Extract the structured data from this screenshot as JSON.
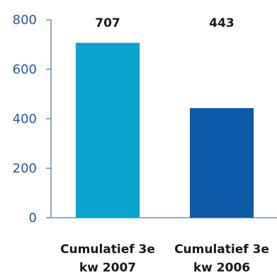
{
  "chart_data": {
    "type": "bar",
    "categories": [
      [
        "Cumulatief 3e",
        "kw 2007"
      ],
      [
        "Cumulatief 3e",
        "kw 2006"
      ]
    ],
    "values": [
      707,
      443
    ],
    "data_labels": [
      "707",
      "443"
    ],
    "colors": [
      "#0aa3cc",
      "#0c5aa8"
    ],
    "ylim": [
      0,
      800
    ],
    "yticks": [
      0,
      200,
      400,
      600,
      800
    ],
    "grid": false,
    "axis_color": "#1f5ba6"
  }
}
